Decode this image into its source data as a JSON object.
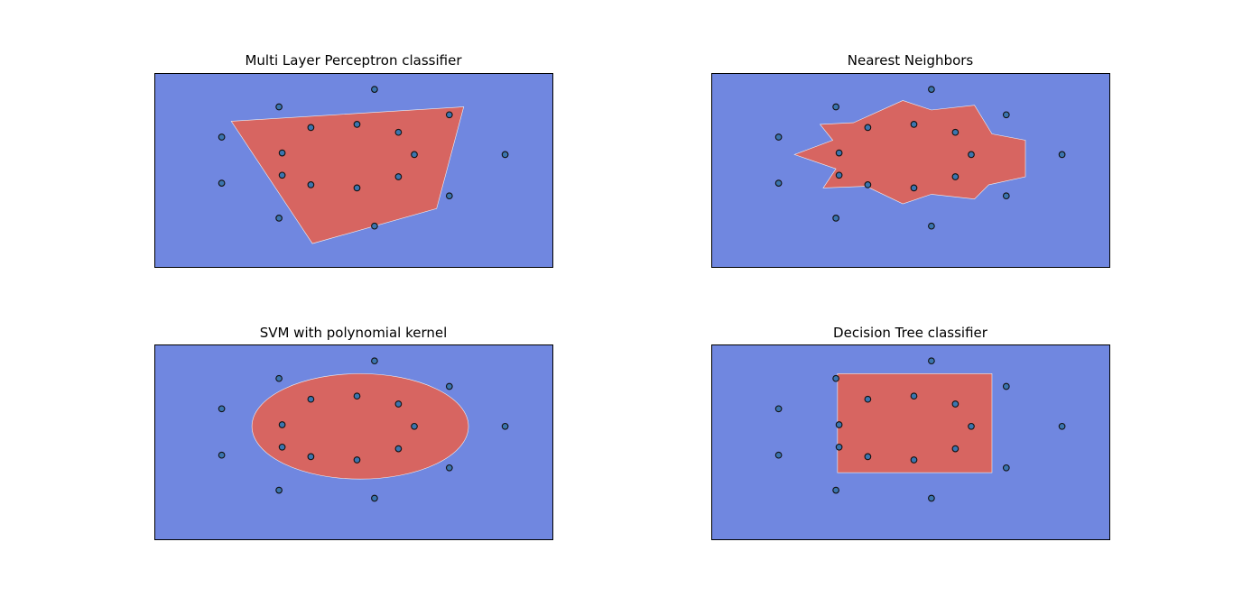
{
  "figure": {
    "background": "#ffffff",
    "colors": {
      "outer_region": "#7087e0",
      "inner_region": "#d76561",
      "point_fill": "#3b75af",
      "point_edge": "#111111",
      "axes_edge": "#000000"
    }
  },
  "chart_data": [
    {
      "type": "scatter",
      "title": "Multi Layer Perceptron classifier",
      "xlabel": "",
      "ylabel": "",
      "xlim": [
        -0.5,
        12
      ],
      "ylim": [
        -0.5,
        5.6
      ],
      "ticks": false,
      "grid": false,
      "decision_region": {
        "shape": "polygon",
        "points": [
          [
            1.9,
            4.1
          ],
          [
            9.2,
            4.55
          ],
          [
            8.35,
            1.35
          ],
          [
            4.45,
            0.25
          ]
        ]
      },
      "points": [
        [
          1.6,
          3.6
        ],
        [
          1.6,
          2.15
        ],
        [
          3.4,
          4.55
        ],
        [
          3.5,
          3.1
        ],
        [
          3.5,
          2.4
        ],
        [
          3.4,
          1.05
        ],
        [
          4.4,
          3.9
        ],
        [
          4.4,
          2.1
        ],
        [
          5.85,
          4.0
        ],
        [
          5.85,
          2.0
        ],
        [
          6.4,
          5.1
        ],
        [
          6.4,
          0.8
        ],
        [
          7.15,
          3.75
        ],
        [
          7.15,
          2.35
        ],
        [
          7.65,
          3.05
        ],
        [
          8.75,
          4.3
        ],
        [
          8.75,
          1.75
        ],
        [
          10.5,
          3.05
        ]
      ]
    },
    {
      "type": "scatter",
      "title": "Nearest Neighbors",
      "xlabel": "",
      "ylabel": "",
      "xlim": [
        -0.5,
        12
      ],
      "ylim": [
        -0.5,
        5.6
      ],
      "ticks": false,
      "grid": false,
      "decision_region": {
        "shape": "polygon",
        "points": [
          [
            2.9,
            4.0
          ],
          [
            3.95,
            4.05
          ],
          [
            5.5,
            4.75
          ],
          [
            6.4,
            4.45
          ],
          [
            7.75,
            4.6
          ],
          [
            8.3,
            3.7
          ],
          [
            9.35,
            3.5
          ],
          [
            9.35,
            2.35
          ],
          [
            8.2,
            2.1
          ],
          [
            7.75,
            1.65
          ],
          [
            6.4,
            1.8
          ],
          [
            5.5,
            1.5
          ],
          [
            4.35,
            2.05
          ],
          [
            3.0,
            2.0
          ],
          [
            3.4,
            2.6
          ],
          [
            2.1,
            3.05
          ],
          [
            3.3,
            3.5
          ]
        ]
      },
      "points": [
        [
          1.6,
          3.6
        ],
        [
          1.6,
          2.15
        ],
        [
          3.4,
          4.55
        ],
        [
          3.5,
          3.1
        ],
        [
          3.5,
          2.4
        ],
        [
          3.4,
          1.05
        ],
        [
          4.4,
          3.9
        ],
        [
          4.4,
          2.1
        ],
        [
          5.85,
          4.0
        ],
        [
          5.85,
          2.0
        ],
        [
          6.4,
          5.1
        ],
        [
          6.4,
          0.8
        ],
        [
          7.15,
          3.75
        ],
        [
          7.15,
          2.35
        ],
        [
          7.65,
          3.05
        ],
        [
          8.75,
          4.3
        ],
        [
          8.75,
          1.75
        ],
        [
          10.5,
          3.05
        ]
      ]
    },
    {
      "type": "scatter",
      "title": "SVM with polynomial kernel",
      "xlabel": "",
      "ylabel": "",
      "xlim": [
        -0.5,
        12
      ],
      "ylim": [
        -0.5,
        5.6
      ],
      "ticks": false,
      "grid": false,
      "decision_region": {
        "shape": "ellipse",
        "center": [
          5.95,
          3.05
        ],
        "radii": [
          3.4,
          1.65
        ]
      },
      "points": [
        [
          1.6,
          3.6
        ],
        [
          1.6,
          2.15
        ],
        [
          3.4,
          4.55
        ],
        [
          3.5,
          3.1
        ],
        [
          3.5,
          2.4
        ],
        [
          3.4,
          1.05
        ],
        [
          4.4,
          3.9
        ],
        [
          4.4,
          2.1
        ],
        [
          5.85,
          4.0
        ],
        [
          5.85,
          2.0
        ],
        [
          6.4,
          5.1
        ],
        [
          6.4,
          0.8
        ],
        [
          7.15,
          3.75
        ],
        [
          7.15,
          2.35
        ],
        [
          7.65,
          3.05
        ],
        [
          8.75,
          4.3
        ],
        [
          8.75,
          1.75
        ],
        [
          10.5,
          3.05
        ]
      ]
    },
    {
      "type": "scatter",
      "title": "Decision Tree classifier",
      "xlabel": "",
      "ylabel": "",
      "xlim": [
        -0.5,
        12
      ],
      "ylim": [
        -0.5,
        5.6
      ],
      "ticks": false,
      "grid": false,
      "decision_region": {
        "shape": "rectangle",
        "x_range": [
          3.45,
          8.3
        ],
        "y_range": [
          1.6,
          4.7
        ]
      },
      "points": [
        [
          1.6,
          3.6
        ],
        [
          1.6,
          2.15
        ],
        [
          3.4,
          4.55
        ],
        [
          3.5,
          3.1
        ],
        [
          3.5,
          2.4
        ],
        [
          3.4,
          1.05
        ],
        [
          4.4,
          3.9
        ],
        [
          4.4,
          2.1
        ],
        [
          5.85,
          4.0
        ],
        [
          5.85,
          2.0
        ],
        [
          6.4,
          5.1
        ],
        [
          6.4,
          0.8
        ],
        [
          7.15,
          3.75
        ],
        [
          7.15,
          2.35
        ],
        [
          7.65,
          3.05
        ],
        [
          8.75,
          4.3
        ],
        [
          8.75,
          1.75
        ],
        [
          10.5,
          3.05
        ]
      ]
    }
  ]
}
